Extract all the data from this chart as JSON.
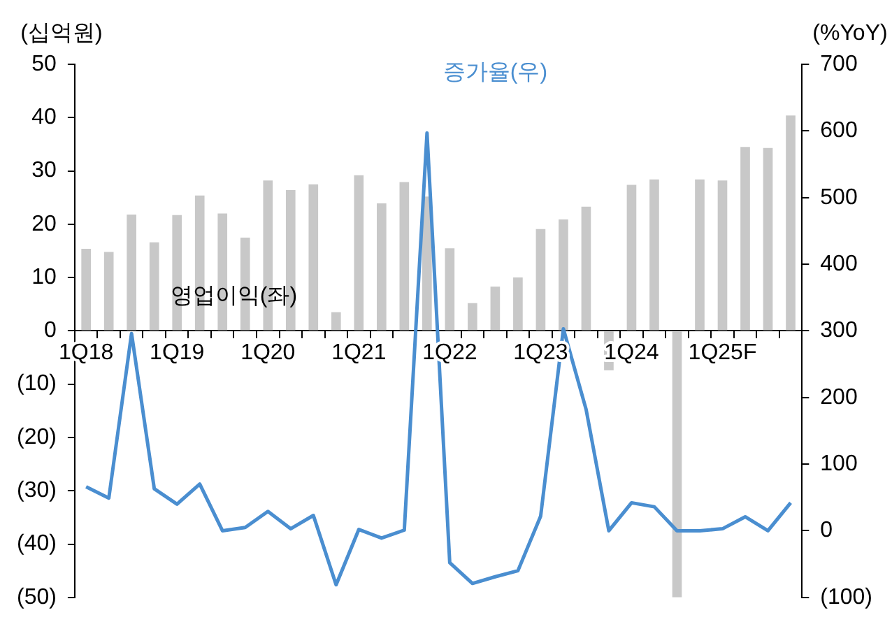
{
  "chart_data": {
    "type": "bar",
    "ylabel": "(십억원)",
    "y2label": "(%YoY)",
    "categories": [
      "1Q18",
      null,
      null,
      null,
      "1Q19",
      null,
      null,
      null,
      "1Q20",
      null,
      null,
      null,
      "1Q21",
      null,
      null,
      null,
      "1Q22",
      null,
      null,
      null,
      "1Q23",
      null,
      null,
      null,
      "1Q24",
      null,
      null,
      null,
      "1Q25F",
      null,
      null,
      null
    ],
    "series": [
      {
        "name": "영업이익(좌)",
        "type": "bar",
        "color": "#c8c8c8",
        "values": [
          15.4,
          14.8,
          21.8,
          16.6,
          21.7,
          25.4,
          22.0,
          17.5,
          28.2,
          26.4,
          27.5,
          3.5,
          29.2,
          23.9,
          27.9,
          25.2,
          15.5,
          5.2,
          8.3,
          10.0,
          19.1,
          20.9,
          23.3,
          -7.4,
          27.4,
          28.4,
          -50,
          28.4,
          28.2,
          34.5,
          34.3,
          40.4
        ]
      },
      {
        "name": "증가율(우)",
        "type": "line",
        "axis": "y2",
        "color": "#4a8ed0",
        "values": [
          66,
          49,
          296,
          63,
          40,
          70,
          0,
          5,
          29,
          3,
          23,
          -81,
          2,
          -11,
          1,
          597,
          -48,
          -79,
          -69,
          -60,
          22,
          303,
          182,
          0,
          42,
          36,
          0,
          0,
          3,
          21,
          0,
          42
        ]
      }
    ],
    "ylim": [
      -50,
      50
    ],
    "yticks": [
      {
        "value": -50,
        "label": "(50)"
      },
      {
        "value": -40,
        "label": "(40)"
      },
      {
        "value": -30,
        "label": "(30)"
      },
      {
        "value": -20,
        "label": "(20)"
      },
      {
        "value": -10,
        "label": "(10)"
      },
      0,
      10,
      20,
      30,
      40,
      50
    ],
    "y2lim": [
      -100,
      700
    ],
    "y2ticks": [
      {
        "value": -100,
        "label": "(100)"
      },
      0,
      100,
      200,
      300,
      400,
      500,
      600,
      700
    ],
    "grid": false,
    "legend": false,
    "marker": "none",
    "line_style": "solid"
  }
}
